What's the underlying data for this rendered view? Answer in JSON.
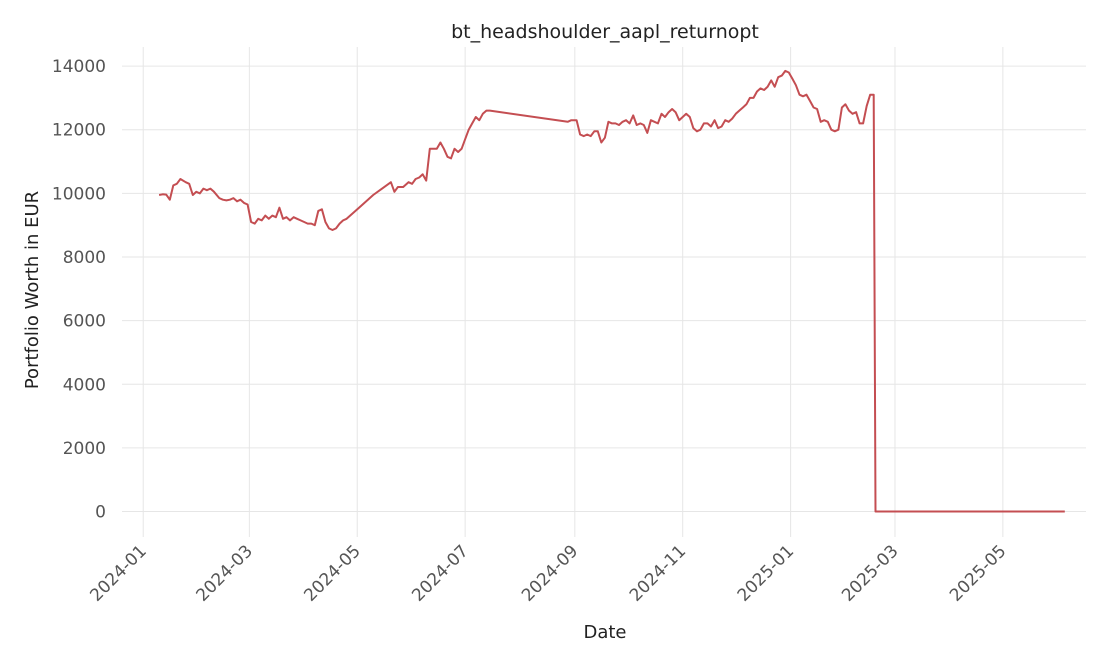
{
  "chart_data": {
    "type": "line",
    "title": "bt_headshoulder_aapl_returnopt",
    "xlabel": "Date",
    "ylabel": "Portfolio Worth in EUR",
    "xlim": [
      "2023-12-20",
      "2025-06-17"
    ],
    "ylim": [
      -800,
      14600
    ],
    "grid": true,
    "line_color": "#c44e52",
    "x_ticks": [
      "2024-01",
      "2024-03",
      "2024-05",
      "2024-07",
      "2024-09",
      "2024-11",
      "2025-01",
      "2025-03",
      "2025-05"
    ],
    "y_ticks": [
      0,
      2000,
      4000,
      6000,
      8000,
      10000,
      12000,
      14000
    ],
    "series": [
      {
        "x": [
          "2024-01-10",
          "2024-01-12",
          "2024-01-14",
          "2024-01-16",
          "2024-01-18",
          "2024-01-20",
          "2024-01-22",
          "2024-01-25",
          "2024-01-27",
          "2024-01-29",
          "2024-01-31",
          "2024-02-02",
          "2024-02-04",
          "2024-02-06",
          "2024-02-08",
          "2024-02-10",
          "2024-02-13",
          "2024-02-15",
          "2024-02-17",
          "2024-02-19",
          "2024-02-21",
          "2024-02-23",
          "2024-02-25",
          "2024-02-27",
          "2024-02-29",
          "2024-03-02",
          "2024-03-04",
          "2024-03-06",
          "2024-03-08",
          "2024-03-10",
          "2024-03-12",
          "2024-03-14",
          "2024-03-16",
          "2024-03-18",
          "2024-03-20",
          "2024-03-22",
          "2024-03-24",
          "2024-03-26",
          "2024-03-28",
          "2024-03-30",
          "2024-04-01",
          "2024-04-03",
          "2024-04-05",
          "2024-04-07",
          "2024-04-09",
          "2024-04-11",
          "2024-04-13",
          "2024-04-15",
          "2024-04-17",
          "2024-04-19",
          "2024-04-21",
          "2024-04-23",
          "2024-04-25",
          "2024-05-02",
          "2024-05-10",
          "2024-05-20",
          "2024-05-22",
          "2024-05-24",
          "2024-05-27",
          "2024-05-30",
          "2024-06-01",
          "2024-06-03",
          "2024-06-05",
          "2024-06-07",
          "2024-06-09",
          "2024-06-11",
          "2024-06-13",
          "2024-06-15",
          "2024-06-17",
          "2024-06-19",
          "2024-06-21",
          "2024-06-23",
          "2024-06-25",
          "2024-06-27",
          "2024-06-29",
          "2024-07-01",
          "2024-07-03",
          "2024-07-05",
          "2024-07-07",
          "2024-07-09",
          "2024-07-11",
          "2024-07-13",
          "2024-07-15",
          "2024-08-28",
          "2024-08-30",
          "2024-09-02",
          "2024-09-04",
          "2024-09-06",
          "2024-09-08",
          "2024-09-10",
          "2024-09-12",
          "2024-09-14",
          "2024-09-16",
          "2024-09-18",
          "2024-09-20",
          "2024-09-22",
          "2024-09-24",
          "2024-09-26",
          "2024-09-28",
          "2024-09-30",
          "2024-10-02",
          "2024-10-04",
          "2024-10-06",
          "2024-10-08",
          "2024-10-10",
          "2024-10-12",
          "2024-10-14",
          "2024-10-16",
          "2024-10-18",
          "2024-10-20",
          "2024-10-22",
          "2024-10-24",
          "2024-10-26",
          "2024-10-28",
          "2024-10-30",
          "2024-11-01",
          "2024-11-03",
          "2024-11-05",
          "2024-11-07",
          "2024-11-09",
          "2024-11-11",
          "2024-11-13",
          "2024-11-15",
          "2024-11-17",
          "2024-11-19",
          "2024-11-21",
          "2024-11-23",
          "2024-11-25",
          "2024-11-27",
          "2024-11-29",
          "2024-12-01",
          "2024-12-03",
          "2024-12-05",
          "2024-12-07",
          "2024-12-09",
          "2024-12-11",
          "2024-12-13",
          "2024-12-15",
          "2024-12-17",
          "2024-12-19",
          "2024-12-21",
          "2024-12-23",
          "2024-12-25",
          "2024-12-27",
          "2024-12-29",
          "2024-12-31",
          "2025-01-02",
          "2025-01-04",
          "2025-01-06",
          "2025-01-08",
          "2025-01-10",
          "2025-01-12",
          "2025-01-14",
          "2025-01-16",
          "2025-01-18",
          "2025-01-20",
          "2025-01-22",
          "2025-01-24",
          "2025-01-26",
          "2025-01-28",
          "2025-01-30",
          "2025-02-01",
          "2025-02-03",
          "2025-02-05",
          "2025-02-07",
          "2025-02-09",
          "2025-02-11",
          "2025-02-13",
          "2025-02-15",
          "2025-02-17",
          "2025-02-18",
          "2025-06-05"
        ],
        "y": [
          9950,
          9970,
          9960,
          9800,
          10250,
          10300,
          10450,
          10350,
          10300,
          9950,
          10050,
          10000,
          10150,
          10100,
          10150,
          10050,
          9850,
          9800,
          9780,
          9800,
          9850,
          9750,
          9800,
          9700,
          9650,
          9100,
          9050,
          9200,
          9150,
          9300,
          9200,
          9300,
          9250,
          9550,
          9200,
          9250,
          9150,
          9250,
          9200,
          9150,
          9100,
          9050,
          9050,
          9000,
          9450,
          9500,
          9100,
          8900,
          8850,
          8900,
          9050,
          9150,
          9200,
          9550,
          9950,
          10350,
          10050,
          10200,
          10200,
          10350,
          10300,
          10450,
          10500,
          10600,
          10400,
          11400,
          11400,
          11400,
          11600,
          11400,
          11150,
          11100,
          11400,
          11300,
          11400,
          11700,
          12000,
          12200,
          12400,
          12300,
          12500,
          12600,
          12600,
          12250,
          12300,
          12300,
          11850,
          11800,
          11850,
          11800,
          11950,
          11950,
          11600,
          11750,
          12250,
          12200,
          12200,
          12150,
          12250,
          12300,
          12200,
          12450,
          12150,
          12200,
          12150,
          11900,
          12300,
          12250,
          12200,
          12500,
          12400,
          12550,
          12650,
          12550,
          12300,
          12400,
          12500,
          12400,
          12050,
          11950,
          12000,
          12200,
          12200,
          12100,
          12300,
          12050,
          12100,
          12300,
          12250,
          12350,
          12500,
          12600,
          12700,
          12800,
          13000,
          13000,
          13200,
          13300,
          13250,
          13350,
          13550,
          13350,
          13650,
          13700,
          13850,
          13800,
          13600,
          13400,
          13100,
          13050,
          13100,
          12900,
          12700,
          12650,
          12250,
          12300,
          12250,
          12000,
          11950,
          12000,
          12700,
          12800,
          12600,
          12500,
          12550,
          12200,
          12200,
          12750,
          13100,
          13100,
          0,
          0
        ]
      }
    ]
  }
}
